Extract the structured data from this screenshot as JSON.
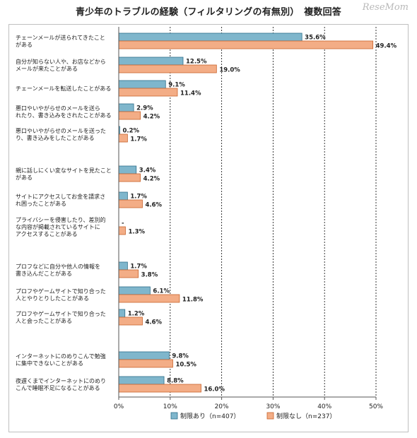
{
  "header": {
    "title": "青少年のトラブルの経験（フィルタリングの有無別）　複数回答",
    "logo": "ReseMom"
  },
  "colors": {
    "series_a": "#7fb6cc",
    "series_b": "#f3ad86",
    "axis": "#555555",
    "grid": "#222222",
    "background": "#ffffff"
  },
  "chart_data": {
    "type": "bar",
    "orientation": "horizontal",
    "grid": true,
    "legend_position": "bottom",
    "xlim": [
      0,
      50
    ],
    "x_ticks": [
      "0%",
      "10%",
      "20%",
      "30%",
      "40%",
      "50%"
    ],
    "categories": [
      [
        "チェーンメールが送られてきたこと",
        "がある"
      ],
      [
        "自分が知らない人や、お店などから",
        "メールが来たことがある"
      ],
      [
        "チェーンメールを転送したことがある"
      ],
      [
        "悪口やいやがらせのメールを送ら",
        "れたり、書き込みをされたことがある"
      ],
      [
        "悪口やいやがらせのメールを送った",
        "り、書き込みをしたことがある"
      ],
      [
        "親に話しにくい変なサイトを見たこと",
        "がある"
      ],
      [
        "サイトにアクセスしてお金を請求さ",
        "れ困ったことがある"
      ],
      [
        "プライバシーを侵害したり、差別的",
        "な内容が掲載されているサイトに",
        "アクセスすることがある"
      ],
      [
        "プロフなどに自分や他人の情報を",
        "書き込んだことがある"
      ],
      [
        "プロフやゲームサイトで知り合った",
        "人とやりとりしたことがある"
      ],
      [
        "プロフやゲームサイトで知り合った",
        "人と会ったことがある"
      ],
      [
        "インターネットにのめりこんで勉強",
        "に集中できないことがある"
      ],
      [
        "夜遅くまでインターネットにのめり",
        "こんで睡眠不足になることがある"
      ]
    ],
    "series": [
      {
        "name": "制限あり（n=407）",
        "values": [
          35.6,
          12.5,
          9.1,
          2.9,
          0.2,
          3.4,
          1.7,
          0,
          1.7,
          6.1,
          1.2,
          9.8,
          8.8
        ],
        "labels": [
          "35.6%",
          "12.5%",
          "9.1%",
          "2.9%",
          "0.2%",
          "3.4%",
          "1.7%",
          "-",
          "1.7%",
          "6.1%",
          "1.2%",
          "9.8%",
          "8.8%"
        ]
      },
      {
        "name": "制限なし（n=237）",
        "values": [
          49.4,
          19.0,
          11.4,
          4.2,
          1.7,
          4.2,
          4.6,
          1.3,
          3.8,
          11.8,
          4.6,
          10.5,
          16.0
        ],
        "labels": [
          "49.4%",
          "19.0%",
          "11.4%",
          "4.2%",
          "1.7%",
          "4.2%",
          "4.6%",
          "1.3%",
          "3.8%",
          "11.8%",
          "4.6%",
          "10.5%",
          "16.0%"
        ]
      }
    ]
  }
}
